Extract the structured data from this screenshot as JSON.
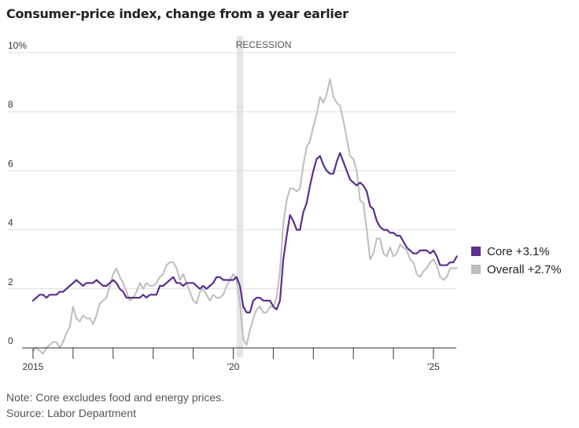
{
  "header": {
    "title": "Consumer-price index, change from a year earlier"
  },
  "footer": {
    "note": "Note: Core excludes food and energy prices.",
    "source": "Source: Labor Department"
  },
  "colors": {
    "core": "#5b2f8c",
    "overall": "#bdbdbd",
    "recession": "#e6e6e6",
    "grid": "#dddddd",
    "axis": "#333333"
  },
  "chart_data": {
    "type": "line",
    "title": "Consumer-price index, change from a year earlier",
    "xlabel": "",
    "ylabel": "",
    "ylim": [
      0,
      10
    ],
    "y_ticks": [
      0,
      2,
      4,
      6,
      8,
      10
    ],
    "y_tick_labels": [
      "0",
      "2",
      "4",
      "6",
      "8",
      "10%"
    ],
    "x_range": [
      "2015-01",
      "2025-08"
    ],
    "x_ticks": [
      2015,
      2016,
      2017,
      2018,
      2019,
      2020,
      2021,
      2022,
      2023,
      2024,
      2025
    ],
    "x_tick_labels": {
      "2015": "2015",
      "2020": "'20",
      "2025": "'25"
    },
    "grid": "horizontal",
    "legend_position": "right",
    "recession": {
      "start": "2020-02",
      "end": "2020-04",
      "label": "RECESSION"
    },
    "series": [
      {
        "name": "Core",
        "legend_label": "Core +3.1%",
        "color": "#5b2f8c",
        "start": "2015-01",
        "values": [
          1.6,
          1.7,
          1.8,
          1.8,
          1.7,
          1.8,
          1.8,
          1.8,
          1.9,
          1.9,
          2.0,
          2.1,
          2.2,
          2.3,
          2.2,
          2.1,
          2.2,
          2.2,
          2.2,
          2.3,
          2.2,
          2.1,
          2.1,
          2.2,
          2.3,
          2.2,
          2.0,
          1.9,
          1.7,
          1.7,
          1.7,
          1.7,
          1.7,
          1.8,
          1.7,
          1.8,
          1.8,
          1.8,
          2.1,
          2.1,
          2.2,
          2.3,
          2.4,
          2.2,
          2.2,
          2.1,
          2.2,
          2.2,
          2.2,
          2.1,
          2.0,
          2.1,
          2.0,
          2.1,
          2.2,
          2.4,
          2.4,
          2.3,
          2.3,
          2.3,
          2.3,
          2.4,
          2.1,
          1.4,
          1.2,
          1.2,
          1.6,
          1.7,
          1.7,
          1.6,
          1.6,
          1.6,
          1.4,
          1.3,
          1.6,
          3.0,
          3.8,
          4.5,
          4.3,
          4.0,
          4.0,
          4.6,
          4.9,
          5.5,
          6.0,
          6.4,
          6.5,
          6.2,
          6.0,
          5.9,
          5.9,
          6.3,
          6.6,
          6.3,
          6.0,
          5.7,
          5.6,
          5.5,
          5.6,
          5.5,
          5.3,
          4.8,
          4.7,
          4.3,
          4.1,
          4.0,
          4.0,
          3.9,
          3.9,
          3.8,
          3.8,
          3.6,
          3.4,
          3.3,
          3.2,
          3.2,
          3.3,
          3.3,
          3.3,
          3.2,
          3.3,
          3.1,
          2.8,
          2.8,
          2.8,
          2.9,
          2.9,
          3.1
        ]
      },
      {
        "name": "Overall",
        "legend_label": "Overall +2.7%",
        "color": "#bdbdbd",
        "start": "2015-01",
        "values": [
          -0.1,
          0.0,
          -0.1,
          -0.2,
          0.0,
          0.1,
          0.2,
          0.2,
          0.0,
          0.2,
          0.5,
          0.7,
          1.4,
          1.0,
          0.9,
          1.1,
          1.0,
          1.0,
          0.8,
          1.1,
          1.5,
          1.6,
          1.7,
          2.1,
          2.5,
          2.7,
          2.4,
          2.2,
          1.9,
          1.6,
          1.7,
          1.9,
          2.2,
          2.0,
          2.2,
          2.1,
          2.1,
          2.2,
          2.4,
          2.5,
          2.8,
          2.9,
          2.9,
          2.7,
          2.3,
          2.5,
          2.2,
          1.9,
          1.6,
          1.5,
          1.9,
          2.0,
          1.8,
          1.6,
          1.8,
          1.7,
          1.7,
          1.8,
          2.1,
          2.3,
          2.5,
          2.3,
          1.5,
          0.3,
          0.1,
          0.6,
          1.0,
          1.3,
          1.4,
          1.2,
          1.2,
          1.4,
          1.4,
          1.7,
          2.6,
          4.2,
          5.0,
          5.4,
          5.4,
          5.3,
          5.4,
          6.2,
          6.8,
          7.0,
          7.5,
          7.9,
          8.5,
          8.3,
          8.6,
          9.1,
          8.5,
          8.3,
          8.2,
          7.7,
          7.1,
          6.5,
          6.4,
          6.0,
          5.0,
          4.9,
          4.0,
          3.0,
          3.2,
          3.7,
          3.7,
          3.2,
          3.1,
          3.4,
          3.1,
          3.2,
          3.5,
          3.4,
          3.3,
          3.0,
          2.9,
          2.5,
          2.4,
          2.6,
          2.7,
          2.9,
          3.0,
          2.8,
          2.4,
          2.3,
          2.4,
          2.7,
          2.7,
          2.7
        ]
      }
    ]
  }
}
